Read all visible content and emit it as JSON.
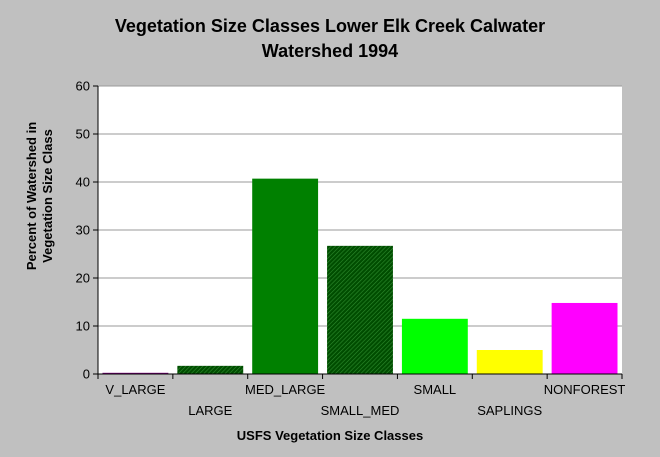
{
  "chart_data": {
    "type": "bar",
    "title_lines": [
      "Vegetation Size Classes Lower Elk Creek Calwater",
      "Watershed 1994"
    ],
    "xlabel": "USFS Vegetation Size Classes",
    "ylabel_lines": [
      "Percent of Watershed in",
      "Vegetation Size Class"
    ],
    "categories": [
      "V_LARGE",
      "LARGE",
      "MED_LARGE",
      "SMALL_MED",
      "SMALL",
      "SAPLINGS",
      "NONFOREST"
    ],
    "values": [
      0.2,
      1.7,
      40.7,
      26.7,
      11.5,
      5.0,
      14.8
    ],
    "colors": [
      "#800080",
      "#006400",
      "#008000",
      "#006400",
      "#00ff00",
      "#ffff00",
      "#ff00ff"
    ],
    "hatched": [
      false,
      true,
      false,
      true,
      false,
      false,
      false
    ],
    "ylim": [
      0,
      60
    ],
    "yticks": [
      0,
      10,
      20,
      30,
      40,
      50,
      60
    ],
    "grid": true,
    "legend": "none"
  }
}
